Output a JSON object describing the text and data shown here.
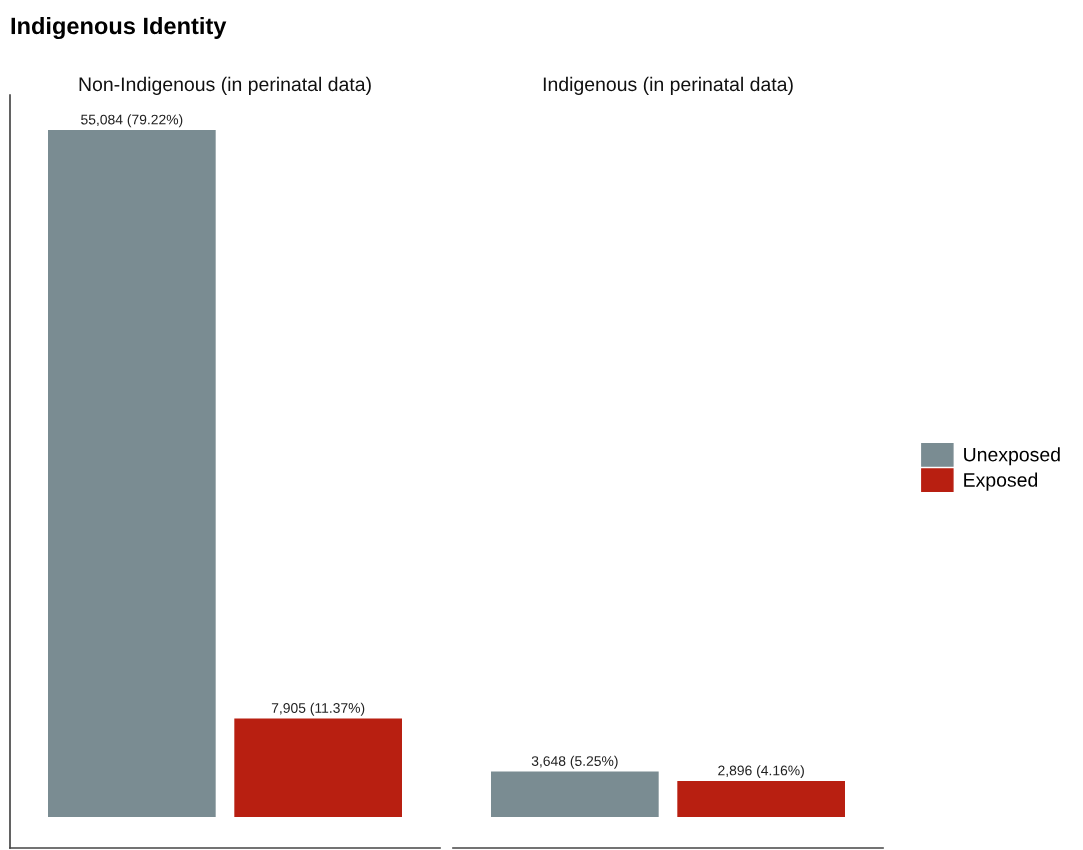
{
  "chart_data": [
    {
      "type": "bar",
      "title": "Indigenous Identity",
      "subtitle": "Non-Indigenous (in perinatal data)",
      "categories": [
        null
      ],
      "series": [
        {
          "name": "Unexposed",
          "color": "#7a8c92",
          "values": [
            55084
          ],
          "value_labels": [
            "55,084 (79.22%)"
          ]
        },
        {
          "name": "Exposed",
          "color": "#b81f11",
          "values": [
            7905
          ],
          "value_labels": [
            "7,905 (11.37%)"
          ]
        }
      ],
      "tick_labels": false,
      "legend": "right"
    },
    {
      "type": "bar",
      "subtitle": "Indigenous (in perinatal data)",
      "categories": [
        null
      ],
      "series": [
        {
          "name": "Unexposed",
          "color": "#7a8c92",
          "values": [
            3648
          ],
          "value_labels": [
            "3,648 (5.25%)"
          ]
        },
        {
          "name": "Exposed",
          "color": "#b81f11",
          "values": [
            2896
          ],
          "value_labels": [
            "2,896 (4.16%)"
          ]
        }
      ],
      "tick_labels": false,
      "legend": "right"
    }
  ]
}
